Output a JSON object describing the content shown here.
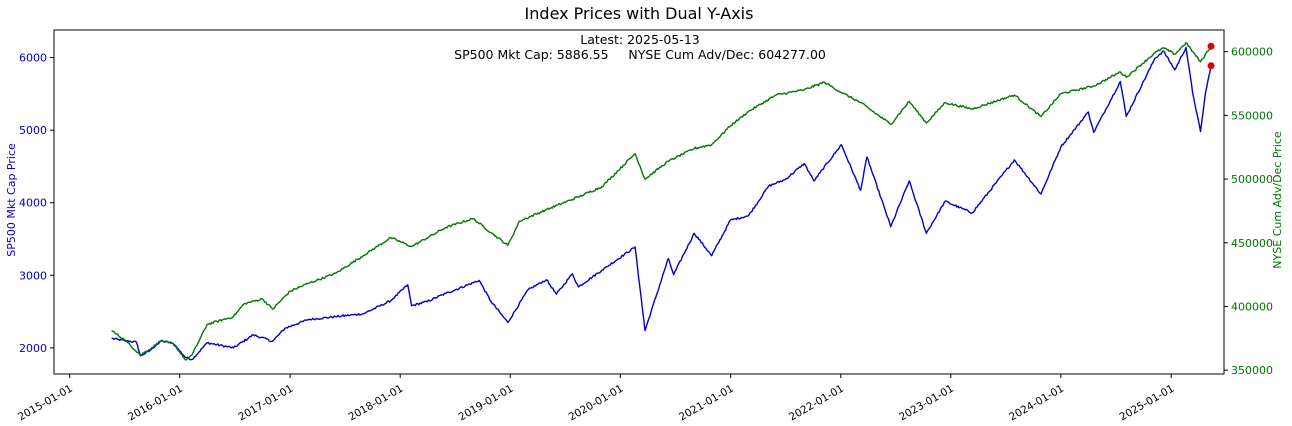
{
  "chart_data": {
    "type": "line",
    "title": "Index Prices with Dual Y-Axis",
    "annotation": {
      "line1": "Latest: 2025-05-13",
      "line2": "SP500 Mkt Cap: 5886.55     NYSE Cum Adv/Dec: 604277.00"
    },
    "xlabel": "",
    "x_ticks": [
      "2015-01-01",
      "2016-01-01",
      "2017-01-01",
      "2018-01-01",
      "2019-01-01",
      "2020-01-01",
      "2021-01-01",
      "2022-01-01",
      "2023-01-01",
      "2024-01-01",
      "2025-01-01"
    ],
    "xlim": [
      "2014-11-10",
      "2025-06-25"
    ],
    "y_left": {
      "label": "SP500 Mkt Cap Price",
      "ylim": [
        1640,
        6380
      ],
      "ticks": [
        2000,
        3000,
        4000,
        5000,
        6000
      ],
      "color": "#0000cc"
    },
    "y_right": {
      "label": "NYSE Cum Adv/Dec Price",
      "ylim": [
        347000,
        617000
      ],
      "ticks": [
        350000,
        400000,
        450000,
        500000,
        550000,
        600000
      ],
      "color": "#007700"
    },
    "series": [
      {
        "name": "SP500 Mkt Cap",
        "axis": "left",
        "color": "#0000cc",
        "points": [
          [
            "2015-05-20",
            2130
          ],
          [
            "2015-07-01",
            2100
          ],
          [
            "2015-08-10",
            2080
          ],
          [
            "2015-08-24",
            1890
          ],
          [
            "2015-09-20",
            1950
          ],
          [
            "2015-11-01",
            2100
          ],
          [
            "2015-12-10",
            2060
          ],
          [
            "2016-01-20",
            1870
          ],
          [
            "2016-02-11",
            1840
          ],
          [
            "2016-04-01",
            2070
          ],
          [
            "2016-06-27",
            2000
          ],
          [
            "2016-09-01",
            2180
          ],
          [
            "2016-11-04",
            2090
          ],
          [
            "2016-12-15",
            2270
          ],
          [
            "2017-03-01",
            2390
          ],
          [
            "2017-06-01",
            2430
          ],
          [
            "2017-09-01",
            2470
          ],
          [
            "2017-12-01",
            2650
          ],
          [
            "2018-01-26",
            2870
          ],
          [
            "2018-02-08",
            2580
          ],
          [
            "2018-04-01",
            2640
          ],
          [
            "2018-06-01",
            2750
          ],
          [
            "2018-09-20",
            2930
          ],
          [
            "2018-10-29",
            2640
          ],
          [
            "2018-12-24",
            2350
          ],
          [
            "2019-03-01",
            2800
          ],
          [
            "2019-05-01",
            2940
          ],
          [
            "2019-06-03",
            2740
          ],
          [
            "2019-07-26",
            3020
          ],
          [
            "2019-08-15",
            2840
          ],
          [
            "2019-11-01",
            3070
          ],
          [
            "2020-02-19",
            3390
          ],
          [
            "2020-03-23",
            2240
          ],
          [
            "2020-06-08",
            3230
          ],
          [
            "2020-06-26",
            3010
          ],
          [
            "2020-09-02",
            3580
          ],
          [
            "2020-10-30",
            3270
          ],
          [
            "2020-12-31",
            3760
          ],
          [
            "2021-03-01",
            3820
          ],
          [
            "2021-05-07",
            4230
          ],
          [
            "2021-07-01",
            4320
          ],
          [
            "2021-09-02",
            4540
          ],
          [
            "2021-10-04",
            4300
          ],
          [
            "2022-01-03",
            4800
          ],
          [
            "2022-03-08",
            4170
          ],
          [
            "2022-03-29",
            4630
          ],
          [
            "2022-06-16",
            3670
          ],
          [
            "2022-08-16",
            4300
          ],
          [
            "2022-10-12",
            3580
          ],
          [
            "2022-12-13",
            4020
          ],
          [
            "2023-03-13",
            3860
          ],
          [
            "2023-07-31",
            4590
          ],
          [
            "2023-10-27",
            4120
          ],
          [
            "2024-01-01",
            4770
          ],
          [
            "2024-04-01",
            5250
          ],
          [
            "2024-04-19",
            4970
          ],
          [
            "2024-07-16",
            5670
          ],
          [
            "2024-08-05",
            5190
          ],
          [
            "2024-11-08",
            5990
          ],
          [
            "2024-12-06",
            6090
          ],
          [
            "2025-01-13",
            5830
          ],
          [
            "2025-02-19",
            6140
          ],
          [
            "2025-03-13",
            5520
          ],
          [
            "2025-04-08",
            4980
          ],
          [
            "2025-04-25",
            5520
          ],
          [
            "2025-05-13",
            5886.55
          ]
        ]
      },
      {
        "name": "NYSE Cum Adv/Dec",
        "axis": "right",
        "color": "#007700",
        "points": [
          [
            "2015-05-20",
            381000
          ],
          [
            "2015-07-01",
            374000
          ],
          [
            "2015-08-24",
            362000
          ],
          [
            "2015-09-20",
            366000
          ],
          [
            "2015-11-01",
            373000
          ],
          [
            "2015-12-15",
            370000
          ],
          [
            "2016-01-20",
            358000
          ],
          [
            "2016-02-11",
            362000
          ],
          [
            "2016-04-01",
            386000
          ],
          [
            "2016-06-27",
            392000
          ],
          [
            "2016-08-01",
            402000
          ],
          [
            "2016-10-01",
            406000
          ],
          [
            "2016-11-04",
            398000
          ],
          [
            "2017-01-01",
            412000
          ],
          [
            "2017-03-01",
            418000
          ],
          [
            "2017-06-01",
            426000
          ],
          [
            "2017-09-01",
            440000
          ],
          [
            "2017-12-01",
            454000
          ],
          [
            "2018-02-08",
            447000
          ],
          [
            "2018-06-01",
            462000
          ],
          [
            "2018-08-31",
            469000
          ],
          [
            "2018-10-29",
            458000
          ],
          [
            "2018-12-24",
            448000
          ],
          [
            "2019-02-01",
            467000
          ],
          [
            "2019-05-01",
            476000
          ],
          [
            "2019-08-15",
            486000
          ],
          [
            "2019-11-01",
            494000
          ],
          [
            "2020-02-19",
            520000
          ],
          [
            "2020-03-23",
            500000
          ],
          [
            "2020-06-08",
            514000
          ],
          [
            "2020-09-02",
            524000
          ],
          [
            "2020-10-30",
            527000
          ],
          [
            "2021-01-01",
            542000
          ],
          [
            "2021-03-01",
            553000
          ],
          [
            "2021-06-01",
            566000
          ],
          [
            "2021-09-01",
            570000
          ],
          [
            "2021-11-08",
            576000
          ],
          [
            "2022-01-03",
            568000
          ],
          [
            "2022-03-08",
            560000
          ],
          [
            "2022-06-16",
            543000
          ],
          [
            "2022-08-16",
            561000
          ],
          [
            "2022-10-12",
            544000
          ],
          [
            "2022-12-13",
            560000
          ],
          [
            "2023-03-13",
            555000
          ],
          [
            "2023-07-31",
            566000
          ],
          [
            "2023-10-27",
            549000
          ],
          [
            "2024-01-01",
            567000
          ],
          [
            "2024-04-19",
            573000
          ],
          [
            "2024-07-16",
            584000
          ],
          [
            "2024-08-05",
            580000
          ],
          [
            "2024-11-08",
            599000
          ],
          [
            "2024-12-06",
            603000
          ],
          [
            "2025-01-13",
            598000
          ],
          [
            "2025-02-19",
            607000
          ],
          [
            "2025-04-08",
            592000
          ],
          [
            "2025-05-13",
            604277
          ]
        ]
      }
    ],
    "latest_markers": [
      {
        "series": "SP500 Mkt Cap",
        "axis": "left",
        "date": "2025-05-13",
        "value": 5886.55,
        "color": "#dd0000"
      },
      {
        "series": "NYSE Cum Adv/Dec",
        "axis": "right",
        "date": "2025-05-13",
        "value": 604277,
        "color": "#dd0000"
      }
    ]
  }
}
